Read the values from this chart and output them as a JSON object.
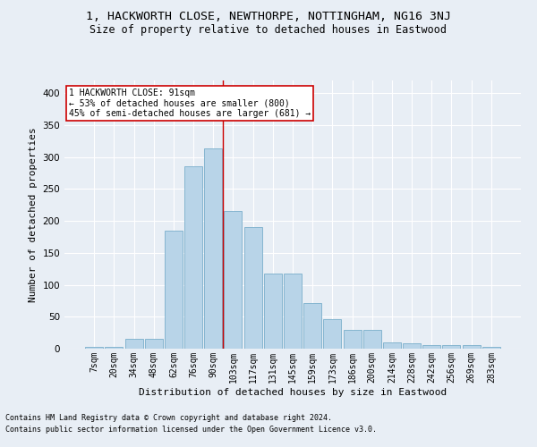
{
  "title": "1, HACKWORTH CLOSE, NEWTHORPE, NOTTINGHAM, NG16 3NJ",
  "subtitle": "Size of property relative to detached houses in Eastwood",
  "xlabel": "Distribution of detached houses by size in Eastwood",
  "ylabel": "Number of detached properties",
  "categories": [
    "7sqm",
    "20sqm",
    "34sqm",
    "48sqm",
    "62sqm",
    "76sqm",
    "90sqm",
    "103sqm",
    "117sqm",
    "131sqm",
    "145sqm",
    "159sqm",
    "173sqm",
    "186sqm",
    "200sqm",
    "214sqm",
    "228sqm",
    "242sqm",
    "256sqm",
    "269sqm",
    "283sqm"
  ],
  "values": [
    3,
    3,
    15,
    15,
    185,
    285,
    313,
    215,
    190,
    118,
    118,
    72,
    46,
    30,
    30,
    10,
    8,
    6,
    5,
    5,
    3
  ],
  "bar_color": "#b8d4e8",
  "bar_edge_color": "#7aaecb",
  "background_color": "#e8eef5",
  "grid_color": "#ffffff",
  "vline_color": "#cc0000",
  "annotation_text": "1 HACKWORTH CLOSE: 91sqm\n← 53% of detached houses are smaller (800)\n45% of semi-detached houses are larger (681) →",
  "annotation_box_color": "#ffffff",
  "annotation_box_edgecolor": "#cc0000",
  "footer_line1": "Contains HM Land Registry data © Crown copyright and database right 2024.",
  "footer_line2": "Contains public sector information licensed under the Open Government Licence v3.0.",
  "ylim": [
    0,
    420
  ],
  "yticks": [
    0,
    50,
    100,
    150,
    200,
    250,
    300,
    350,
    400
  ],
  "title_fontsize": 9.5,
  "subtitle_fontsize": 8.5,
  "tick_fontsize": 7,
  "ylabel_fontsize": 8,
  "xlabel_fontsize": 8,
  "annotation_fontsize": 7,
  "footer_fontsize": 6
}
